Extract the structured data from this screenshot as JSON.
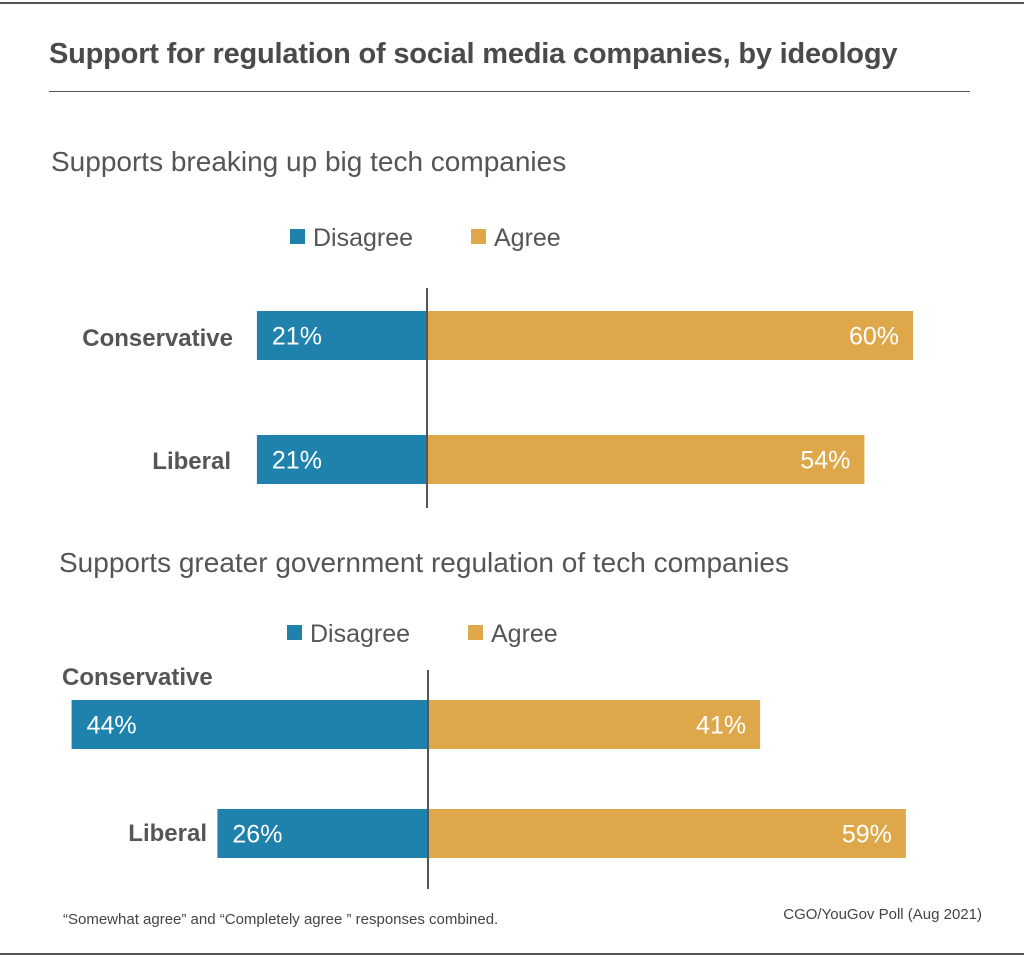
{
  "title": "Support for regulation of social media companies, by ideology",
  "colors": {
    "disagree": "#1f82ad",
    "agree": "#dea84a",
    "axis": "#555555",
    "label_text": "#ffffff",
    "category_text": "#555555"
  },
  "chart_data": [
    {
      "type": "bar",
      "orientation": "horizontal-diverging",
      "title": "Supports breaking up big tech companies",
      "legend": [
        "Disagree",
        "Agree"
      ],
      "categories": [
        "Conservative",
        "Liberal"
      ],
      "series": [
        {
          "name": "Disagree",
          "values": [
            21,
            21
          ],
          "labels": [
            "21%",
            "21%"
          ]
        },
        {
          "name": "Agree",
          "values": [
            60,
            54
          ],
          "labels": [
            "60%",
            "54%"
          ]
        }
      ]
    },
    {
      "type": "bar",
      "orientation": "horizontal-diverging",
      "title": "Supports greater government regulation of tech companies",
      "legend": [
        "Disagree",
        "Agree"
      ],
      "categories": [
        "Conservative",
        "Liberal"
      ],
      "series": [
        {
          "name": "Disagree",
          "values": [
            44,
            26
          ],
          "labels": [
            "44%",
            "26%"
          ]
        },
        {
          "name": "Agree",
          "values": [
            41,
            59
          ],
          "labels": [
            "41%",
            "59%"
          ]
        }
      ]
    }
  ],
  "footnote": "“Somewhat agree” and “Completely agree ” responses combined.",
  "source": "CGO/YouGov Poll (Aug 2021)"
}
